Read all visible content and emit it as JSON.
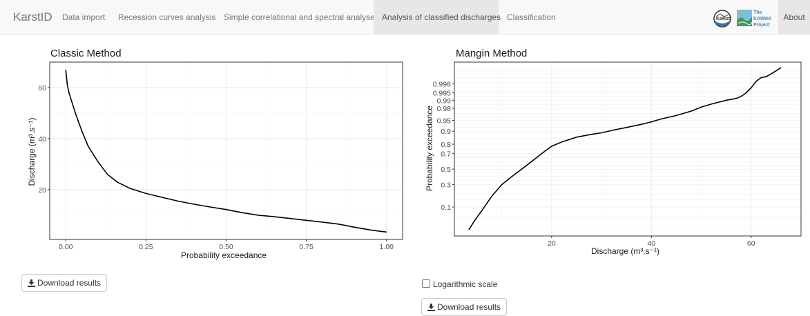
{
  "navbar": {
    "brand": "KarstID",
    "items": [
      {
        "label": "Data import"
      },
      {
        "label": "Recession curves analysis"
      },
      {
        "label": "Simple correlational and spectral analyses"
      },
      {
        "label": "Analysis of classified discharges",
        "active": true
      },
      {
        "label": "Classification"
      }
    ],
    "karma_logo": {
      "line1": "The",
      "line2": "KARMA",
      "line3": "Project"
    },
    "karst_logo_text": "KaRst",
    "about": "About"
  },
  "classic": {
    "download_label": "Download results"
  },
  "mangin": {
    "log_scale_label": "Logarithmic scale",
    "log_scale_checked": false,
    "download_label": "Download results"
  },
  "chart_data": [
    {
      "type": "line",
      "title": "Classic Method",
      "xlabel": "Probability exceedance",
      "ylabel": "Discharge (m³.s⁻¹)",
      "xlim": [
        -0.05,
        1.05
      ],
      "ylim": [
        0.5,
        70
      ],
      "x_ticks": [
        "0.00",
        "0.25",
        "0.50",
        "0.75",
        "1.00"
      ],
      "y_ticks": [
        "20",
        "40",
        "60"
      ],
      "grid": true,
      "x": [
        0.0,
        0.005,
        0.01,
        0.02,
        0.03,
        0.05,
        0.07,
        0.1,
        0.13,
        0.16,
        0.2,
        0.25,
        0.3,
        0.35,
        0.4,
        0.45,
        0.5,
        0.55,
        0.6,
        0.65,
        0.7,
        0.75,
        0.8,
        0.85,
        0.9,
        0.95,
        0.98,
        1.0
      ],
      "y": [
        67,
        61,
        58,
        54,
        50,
        43,
        37,
        31,
        26,
        23,
        20.5,
        18.5,
        17,
        15.5,
        14.3,
        13.2,
        12.2,
        11,
        10,
        9.4,
        8.7,
        8,
        7.3,
        6.5,
        5.3,
        4.2,
        3.7,
        3.4
      ]
    },
    {
      "type": "line",
      "title": "Mangin Method",
      "xlabel": "Discharge (m³.s⁻¹)",
      "ylabel": "Probability exceedance",
      "xlim": [
        0.5,
        70
      ],
      "y_scale": "probit",
      "x_ticks": [
        "20",
        "40",
        "60"
      ],
      "y_ticks": [
        "0.1",
        "0.3",
        "0.5",
        "0.7",
        "0.8",
        "0.9",
        "0.95",
        "0.98",
        "0.99",
        "0.995",
        "0.998"
      ],
      "grid": true,
      "x": [
        3.4,
        4.5,
        6,
        8,
        10,
        12,
        15,
        18,
        20,
        22,
        25,
        28,
        30,
        33,
        35,
        38,
        40,
        42,
        45,
        48,
        50,
        52,
        55,
        57,
        58,
        59,
        60,
        61,
        62,
        63,
        64,
        65,
        66
      ],
      "y": [
        0.02,
        0.04,
        0.08,
        0.18,
        0.3,
        0.4,
        0.55,
        0.7,
        0.78,
        0.82,
        0.86,
        0.88,
        0.89,
        0.91,
        0.92,
        0.935,
        0.945,
        0.955,
        0.965,
        0.975,
        0.982,
        0.986,
        0.99,
        0.9915,
        0.993,
        0.995,
        0.997,
        0.9985,
        0.999,
        0.9991,
        0.99935,
        0.99955,
        0.9997
      ]
    }
  ]
}
